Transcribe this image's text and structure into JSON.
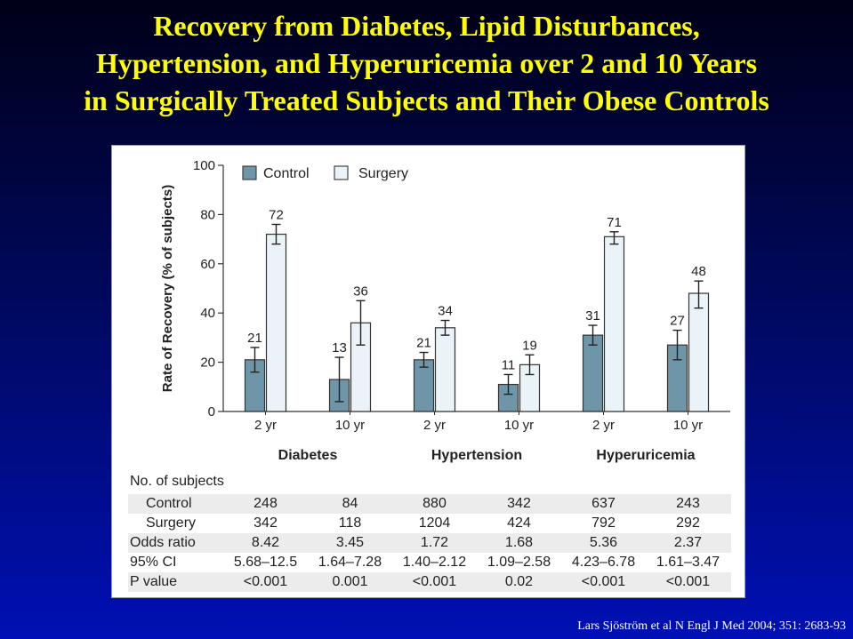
{
  "title_lines": [
    "Recovery from Diabetes, Lipid Disturbances,",
    "Hypertension, and Hyperuricemia over 2 and 10 Years",
    "in Surgically Treated Subjects and Their Obese Controls"
  ],
  "citation": "Lars Sjöström et al N Engl J Med 2004; 351: 2683-93",
  "colors": {
    "control": "#6e96a8",
    "surgery": "#eaf3f8",
    "title": "#ffff00"
  },
  "chart_data": {
    "type": "bar",
    "ylabel": "Rate of Recovery (% of subjects)",
    "ylim": [
      0,
      100
    ],
    "yticks": [
      0,
      20,
      40,
      60,
      80,
      100
    ],
    "groups": [
      "Diabetes",
      "Hypertension",
      "Hyperuricemia"
    ],
    "categories": [
      "2 yr",
      "10 yr",
      "2 yr",
      "10 yr",
      "2 yr",
      "10 yr"
    ],
    "series": [
      {
        "name": "Control",
        "values": [
          21,
          13,
          21,
          11,
          31,
          27
        ],
        "error_low": [
          16,
          4,
          18,
          7,
          27,
          21
        ],
        "error_high": [
          26,
          22,
          24,
          15,
          35,
          33
        ]
      },
      {
        "name": "Surgery",
        "values": [
          72,
          36,
          34,
          19,
          71,
          48
        ],
        "error_low": [
          68,
          27,
          31,
          15,
          68,
          42
        ],
        "error_high": [
          76,
          45,
          37,
          23,
          73,
          53
        ]
      }
    ],
    "legend_position": "top-left",
    "grid": false
  },
  "table": {
    "header": "No. of subjects",
    "rows": [
      {
        "label": "Control",
        "values": [
          "248",
          "84",
          "880",
          "342",
          "637",
          "243"
        ]
      },
      {
        "label": "Surgery",
        "values": [
          "342",
          "118",
          "1204",
          "424",
          "792",
          "292"
        ]
      },
      {
        "label": "Odds ratio",
        "values": [
          "8.42",
          "3.45",
          "1.72",
          "1.68",
          "5.36",
          "2.37"
        ]
      },
      {
        "label": "95% CI",
        "values": [
          "5.68–12.5",
          "1.64–7.28",
          "1.40–2.12",
          "1.09–2.58",
          "4.23–6.78",
          "1.61–3.47"
        ]
      },
      {
        "label": "P value",
        "values": [
          "<0.001",
          "0.001",
          "<0.001",
          "0.02",
          "<0.001",
          "<0.001"
        ]
      }
    ]
  }
}
